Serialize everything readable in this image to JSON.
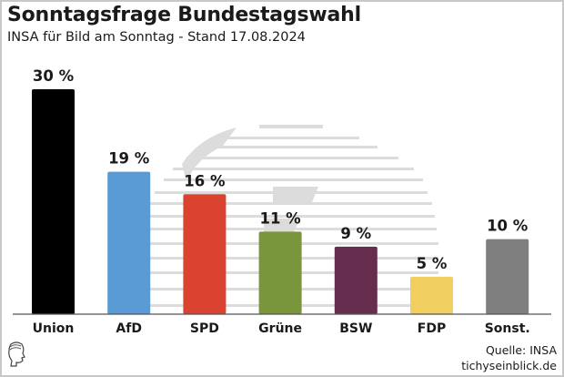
{
  "header": {
    "title": "Sonntagsfrage Bundestagswahl",
    "subtitle": "INSA für Bild am Sonntag - Stand 17.08.2024"
  },
  "footer": {
    "source": "Quelle: INSA",
    "site": "tichyseinblick.de"
  },
  "chart_data": {
    "type": "bar",
    "title": "Sonntagsfrage Bundestagswahl",
    "subtitle": "INSA für Bild am Sonntag - Stand 17.08.2024",
    "xlabel": "",
    "ylabel": "",
    "ylim": [
      0,
      30
    ],
    "grid": false,
    "legend": "none",
    "unit": "%",
    "categories": [
      "Union",
      "AfD",
      "SPD",
      "Grüne",
      "BSW",
      "FDP",
      "Sonst."
    ],
    "values": [
      30,
      19,
      16,
      11,
      9,
      5,
      10
    ],
    "value_labels": [
      "30 %",
      "19 %",
      "16 %",
      "11 %",
      "9 %",
      "5 %",
      "10 %"
    ],
    "colors": [
      "#000000",
      "#5b9bd5",
      "#d9432f",
      "#7a963c",
      "#662d4e",
      "#f0cf60",
      "#7f7f7f"
    ],
    "annotations": [
      "Quelle: INSA",
      "tichyseinblick.de"
    ]
  }
}
